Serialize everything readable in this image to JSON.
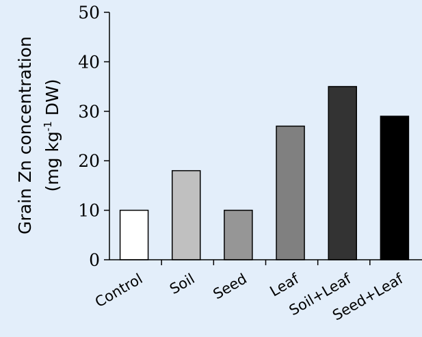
{
  "chart_data": {
    "type": "bar",
    "categories": [
      "Control",
      "Soil",
      "Seed",
      "Leaf",
      "Soil+Leaf",
      "Seed+Leaf"
    ],
    "values": [
      10,
      18,
      10,
      27,
      35,
      29
    ],
    "ylim": [
      0,
      50
    ],
    "yticks": [
      "0",
      "10",
      "20",
      "30",
      "40",
      "50"
    ],
    "ylabel": {
      "line1": "Grain Zn concentration",
      "line2_pre": "(mg kg",
      "line2_sup": "-1",
      "line2_post": " DW)"
    },
    "bar_colors": [
      "#ffffff",
      "#c0c0c0",
      "#969696",
      "#808080",
      "#333333",
      "#000000"
    ],
    "grid": false
  }
}
